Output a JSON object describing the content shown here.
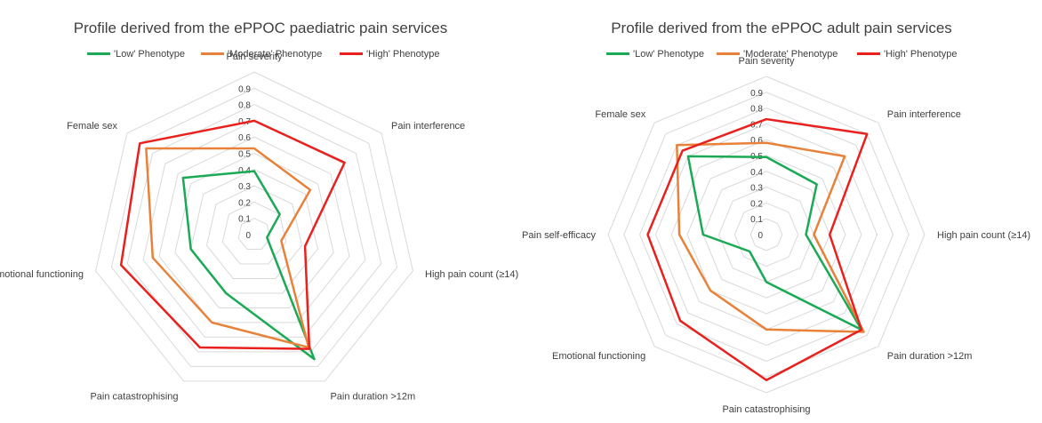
{
  "chart_data": [
    {
      "type": "radar",
      "title": "Profile derived from the ePPOC paediatric pain services",
      "axes": [
        "Pain severity",
        "Pain interference",
        "High pain count (≥14)",
        "Pain duration >12m",
        "Pain catastrophising",
        "Emotional functioning",
        "Female sex"
      ],
      "ticks": [
        "0",
        "0.1",
        "0.2",
        "0.3",
        "0.4",
        "0.5",
        "0.6",
        "0.7",
        "0.8",
        "0.9"
      ],
      "range": [
        0,
        0.9
      ],
      "series": [
        {
          "name": "'Low' Phenotype",
          "color": "#1aaa55",
          "values": [
            0.39,
            0.2,
            0.08,
            0.85,
            0.4,
            0.4,
            0.56
          ]
        },
        {
          "name": "'Moderate' Phenotype",
          "color": "#e8823a",
          "values": [
            0.53,
            0.44,
            0.17,
            0.77,
            0.6,
            0.64,
            0.85
          ]
        },
        {
          "name": "'High' Phenotype",
          "color": "#e8211e",
          "values": [
            0.7,
            0.71,
            0.32,
            0.78,
            0.77,
            0.84,
            0.9
          ]
        }
      ],
      "legend_position": "top"
    },
    {
      "type": "radar",
      "title": "Profile derived from the ePPOC adult pain services",
      "axes": [
        "Pain severity",
        "Pain interference",
        "High pain count (≥14)",
        "Pain duration >12m",
        "Pain catastrophising",
        "Emotional functioning",
        "Pain self-efficacy",
        "Female sex"
      ],
      "ticks": [
        "0",
        "0.1",
        "0.2",
        "0.3",
        "0.4",
        "0.5",
        "0.6",
        "0.7",
        "0.8",
        "0.9"
      ],
      "range": [
        0,
        0.9
      ],
      "series": [
        {
          "name": "'Low' Phenotype",
          "color": "#1aaa55",
          "values": [
            0.49,
            0.45,
            0.25,
            0.85,
            0.3,
            0.15,
            0.4,
            0.7
          ]
        },
        {
          "name": "'Moderate' Phenotype",
          "color": "#e8823a",
          "values": [
            0.58,
            0.7,
            0.3,
            0.87,
            0.6,
            0.5,
            0.55,
            0.8
          ]
        },
        {
          "name": "'High' Phenotype",
          "color": "#e8211e",
          "values": [
            0.73,
            0.9,
            0.4,
            0.85,
            0.92,
            0.77,
            0.75,
            0.75
          ]
        }
      ],
      "legend_position": "top"
    }
  ]
}
